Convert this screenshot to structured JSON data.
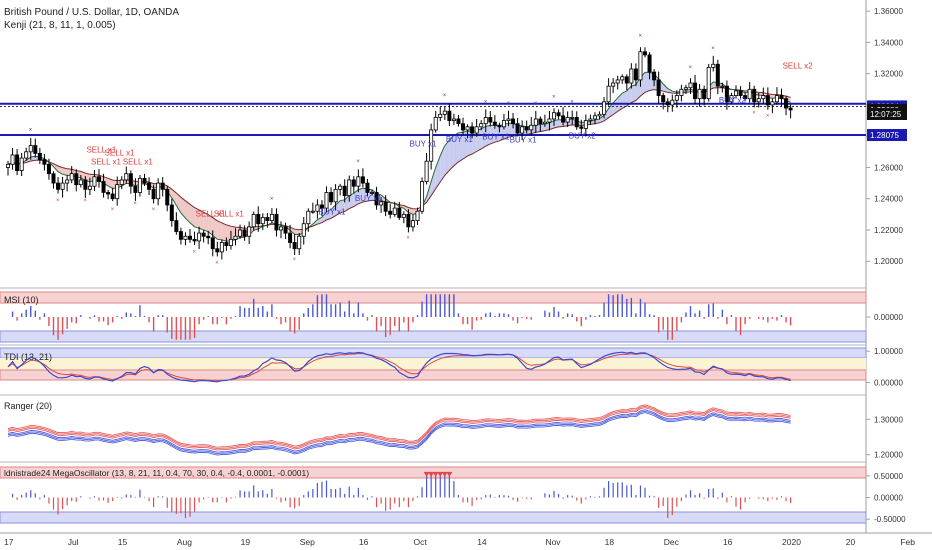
{
  "header": {
    "title": "British Pound / U.S. Dollar, 1D, OANDA",
    "indicator": "Kenji (21, 8, 11, 1, 0.005)"
  },
  "colors": {
    "up": "#ffffff",
    "down": "#000000",
    "hline": "#1a1ab0",
    "sell": "#e03c3c",
    "buy": "#3c3cd0",
    "cloud_bull": "#c8cdf0",
    "cloud_bear": "#f0c8c8"
  },
  "price_axis": {
    "ticks": [
      "1.36000",
      "1.34000",
      "1.32000",
      "1.30000",
      "1.28000",
      "1.26000",
      "1.24000",
      "1.22000",
      "1.20000"
    ],
    "tick_values": [
      1.36,
      1.34,
      1.32,
      1.3,
      1.28,
      1.26,
      1.24,
      1.22,
      1.2
    ],
    "range": [
      1.188,
      1.362
    ],
    "labels": [
      {
        "text": "1.29904",
        "value": 1.29904,
        "style": "blue"
      },
      {
        "text": "1.29680",
        "value": 1.2968,
        "style": "black"
      },
      {
        "text": "12:07:25",
        "value": 1.2942,
        "style": "black"
      },
      {
        "text": "1.28075",
        "value": 1.28075,
        "style": "blue"
      }
    ],
    "hlines": [
      1.30075,
      1.299,
      1.28075
    ]
  },
  "x_axis": {
    "labels": [
      "17",
      "Jul",
      "15",
      "Aug",
      "19",
      "Sep",
      "16",
      "Oct",
      "14",
      "Nov",
      "18",
      "Dec",
      "16",
      "2020",
      "20",
      "Feb"
    ],
    "label_bars": [
      0,
      14,
      25,
      38,
      52,
      65,
      78,
      90,
      104,
      119,
      132,
      145,
      158,
      171,
      185,
      197
    ]
  },
  "chart_data": {
    "type": "candlestick",
    "symbol": "British Pound / U.S. Dollar",
    "timeframe": "1D",
    "ylim": [
      1.188,
      1.362
    ],
    "close_approx": [
      1.262,
      1.268,
      1.258,
      1.266,
      1.27,
      1.274,
      1.269,
      1.265,
      1.262,
      1.256,
      1.25,
      1.246,
      1.25,
      1.252,
      1.256,
      1.249,
      1.252,
      1.246,
      1.248,
      1.254,
      1.251,
      1.244,
      1.243,
      1.24,
      1.249,
      1.252,
      1.256,
      1.248,
      1.244,
      1.253,
      1.25,
      1.246,
      1.24,
      1.25,
      1.246,
      1.236,
      1.226,
      1.219,
      1.214,
      1.216,
      1.214,
      1.213,
      1.218,
      1.216,
      1.215,
      1.208,
      1.206,
      1.212,
      1.21,
      1.214,
      1.216,
      1.22,
      1.216,
      1.222,
      1.23,
      1.224,
      1.228,
      1.226,
      1.23,
      1.22,
      1.222,
      1.218,
      1.212,
      1.208,
      1.216,
      1.224,
      1.232,
      1.232,
      1.236,
      1.234,
      1.244,
      1.238,
      1.246,
      1.248,
      1.242,
      1.252,
      1.248,
      1.254,
      1.25,
      1.244,
      1.244,
      1.236,
      1.238,
      1.232,
      1.23,
      1.234,
      1.228,
      1.23,
      1.222,
      1.226,
      1.232,
      1.251,
      1.264,
      1.284,
      1.292,
      1.294,
      1.296,
      1.29,
      1.291,
      1.288,
      1.284,
      1.286,
      1.282,
      1.286,
      1.288,
      1.292,
      1.289,
      1.287,
      1.286,
      1.29,
      1.291,
      1.288,
      1.282,
      1.286,
      1.284,
      1.287,
      1.291,
      1.288,
      1.289,
      1.291,
      1.295,
      1.293,
      1.289,
      1.292,
      1.292,
      1.286,
      1.285,
      1.29,
      1.291,
      1.293,
      1.294,
      1.302,
      1.312,
      1.314,
      1.316,
      1.318,
      1.314,
      1.323,
      1.316,
      1.334,
      1.332,
      1.321,
      1.316,
      1.306,
      1.302,
      1.3,
      1.303,
      1.306,
      1.31,
      1.311,
      1.314,
      1.304,
      1.31,
      1.304,
      1.324,
      1.326,
      1.312,
      1.312,
      1.302,
      1.306,
      1.309,
      1.306,
      1.304,
      1.31,
      1.302,
      1.304,
      1.306,
      1.3,
      1.302,
      1.306,
      1.304,
      1.298,
      1.2968
    ],
    "series": [
      {
        "name": "MSI (10)",
        "ylim": [
          -0.22,
          0.22
        ],
        "ticks": [
          "0.00000"
        ],
        "tick_values": [
          0.0
        ]
      },
      {
        "name": "TDI (13, 21)",
        "ylim": [
          -0.3,
          1.1
        ],
        "ticks": [
          "1.00000",
          "0.00000"
        ],
        "tick_values": [
          1.0,
          0.0
        ]
      },
      {
        "name": "Ranger (20)",
        "ylim": [
          1.185,
          1.36
        ],
        "ticks": [
          "1.30000",
          "1.20000"
        ],
        "tick_values": [
          1.3,
          1.2
        ]
      },
      {
        "name": "ldnistrade24 MegaOscillator (13, 8, 21, 11, 0.4, 70, 30, 0.4, -0.4, 0.0001, -0.0001)",
        "ylim": [
          -0.75,
          0.75
        ],
        "ticks": [
          "0.50000",
          "0.00000",
          "-0.50000"
        ],
        "tick_values": [
          0.5,
          0.0,
          -0.5
        ]
      }
    ],
    "signals": [
      {
        "text": "SELL x1",
        "bar": 19,
        "price": 1.2695
      },
      {
        "text": "SELL x1",
        "bar": 23,
        "price": 1.2675
      },
      {
        "text": "SELL x1",
        "bar": 20,
        "price": 1.262
      },
      {
        "text": "SELL x1",
        "bar": 27,
        "price": 1.262
      },
      {
        "text": "SELL x1",
        "bar": 43,
        "price": 1.2285
      },
      {
        "text": "SELL x1",
        "bar": 47,
        "price": 1.2285
      },
      {
        "text": "SELL x2",
        "bar": 172,
        "price": 1.3232
      },
      {
        "text": "BUY x1",
        "bar": 98,
        "price": 1.2762
      },
      {
        "text": "BUY x1",
        "bar": 90,
        "price": 1.2735
      },
      {
        "text": "BUY x1",
        "bar": 106,
        "price": 1.2778
      },
      {
        "text": "BUY x1",
        "bar": 112,
        "price": 1.2758
      },
      {
        "text": "BUY x1",
        "bar": 70,
        "price": 1.2298
      },
      {
        "text": "BUY x1",
        "bar": 78,
        "price": 1.2385
      },
      {
        "text": "BUY x2",
        "bar": 125,
        "price": 1.2785
      },
      {
        "text": "BUY x2",
        "bar": 158,
        "price": 1.3012
      }
    ]
  }
}
